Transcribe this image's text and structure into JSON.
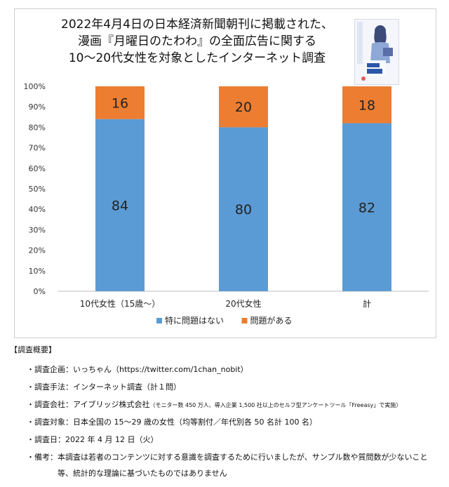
{
  "chart_data": {
    "type": "bar",
    "stacked": true,
    "title_lines": [
      "2022年4月4日の日本経済新聞朝刊に掲載された、",
      "漫画『月曜日のたわわ』の全面広告に関する",
      "10〜20代女性を対象としたインターネット調査"
    ],
    "categories": [
      "10代女性（15歳〜）",
      "20代女性",
      "計"
    ],
    "series": [
      {
        "name": "特に問題はない",
        "values": [
          84,
          80,
          82
        ],
        "color": "#5b9bd5"
      },
      {
        "name": "問題がある",
        "values": [
          16,
          20,
          18
        ],
        "color": "#ed7d31"
      }
    ],
    "y_ticks": [
      "0%",
      "10%",
      "20%",
      "30%",
      "40%",
      "50%",
      "60%",
      "70%",
      "80%",
      "90%",
      "100%"
    ],
    "ylim": [
      0,
      100
    ],
    "grid": false,
    "legend_position": "bottom"
  },
  "summary": {
    "heading": "【調査概要】",
    "items": [
      {
        "text": "・調査企画：いっちゃん（https://twitter.com/1chan_nobit）"
      },
      {
        "text": "・調査手法：インターネット調査（計１問）"
      },
      {
        "text": "・調査会社：アイブリッジ株式会社",
        "note": "（モニター数 450 万人、導入企業 1,500 社以上のセルフ型アンケートツール「Freeasy」で実施）"
      },
      {
        "text": "・調査対象：日本全国の 15〜29 歳の女性（均等割付／年代別各 50 名計 100 名）"
      },
      {
        "text": "・調査日：2022 年 4 月 12 日（火）"
      },
      {
        "text": "・備考：本調査は若者のコンテンツに対する意識を調査するために行いましたが、サンプル数や質問数が少ないこと"
      }
    ],
    "continuation": "等、統計的な理論に基づいたものではありません"
  }
}
